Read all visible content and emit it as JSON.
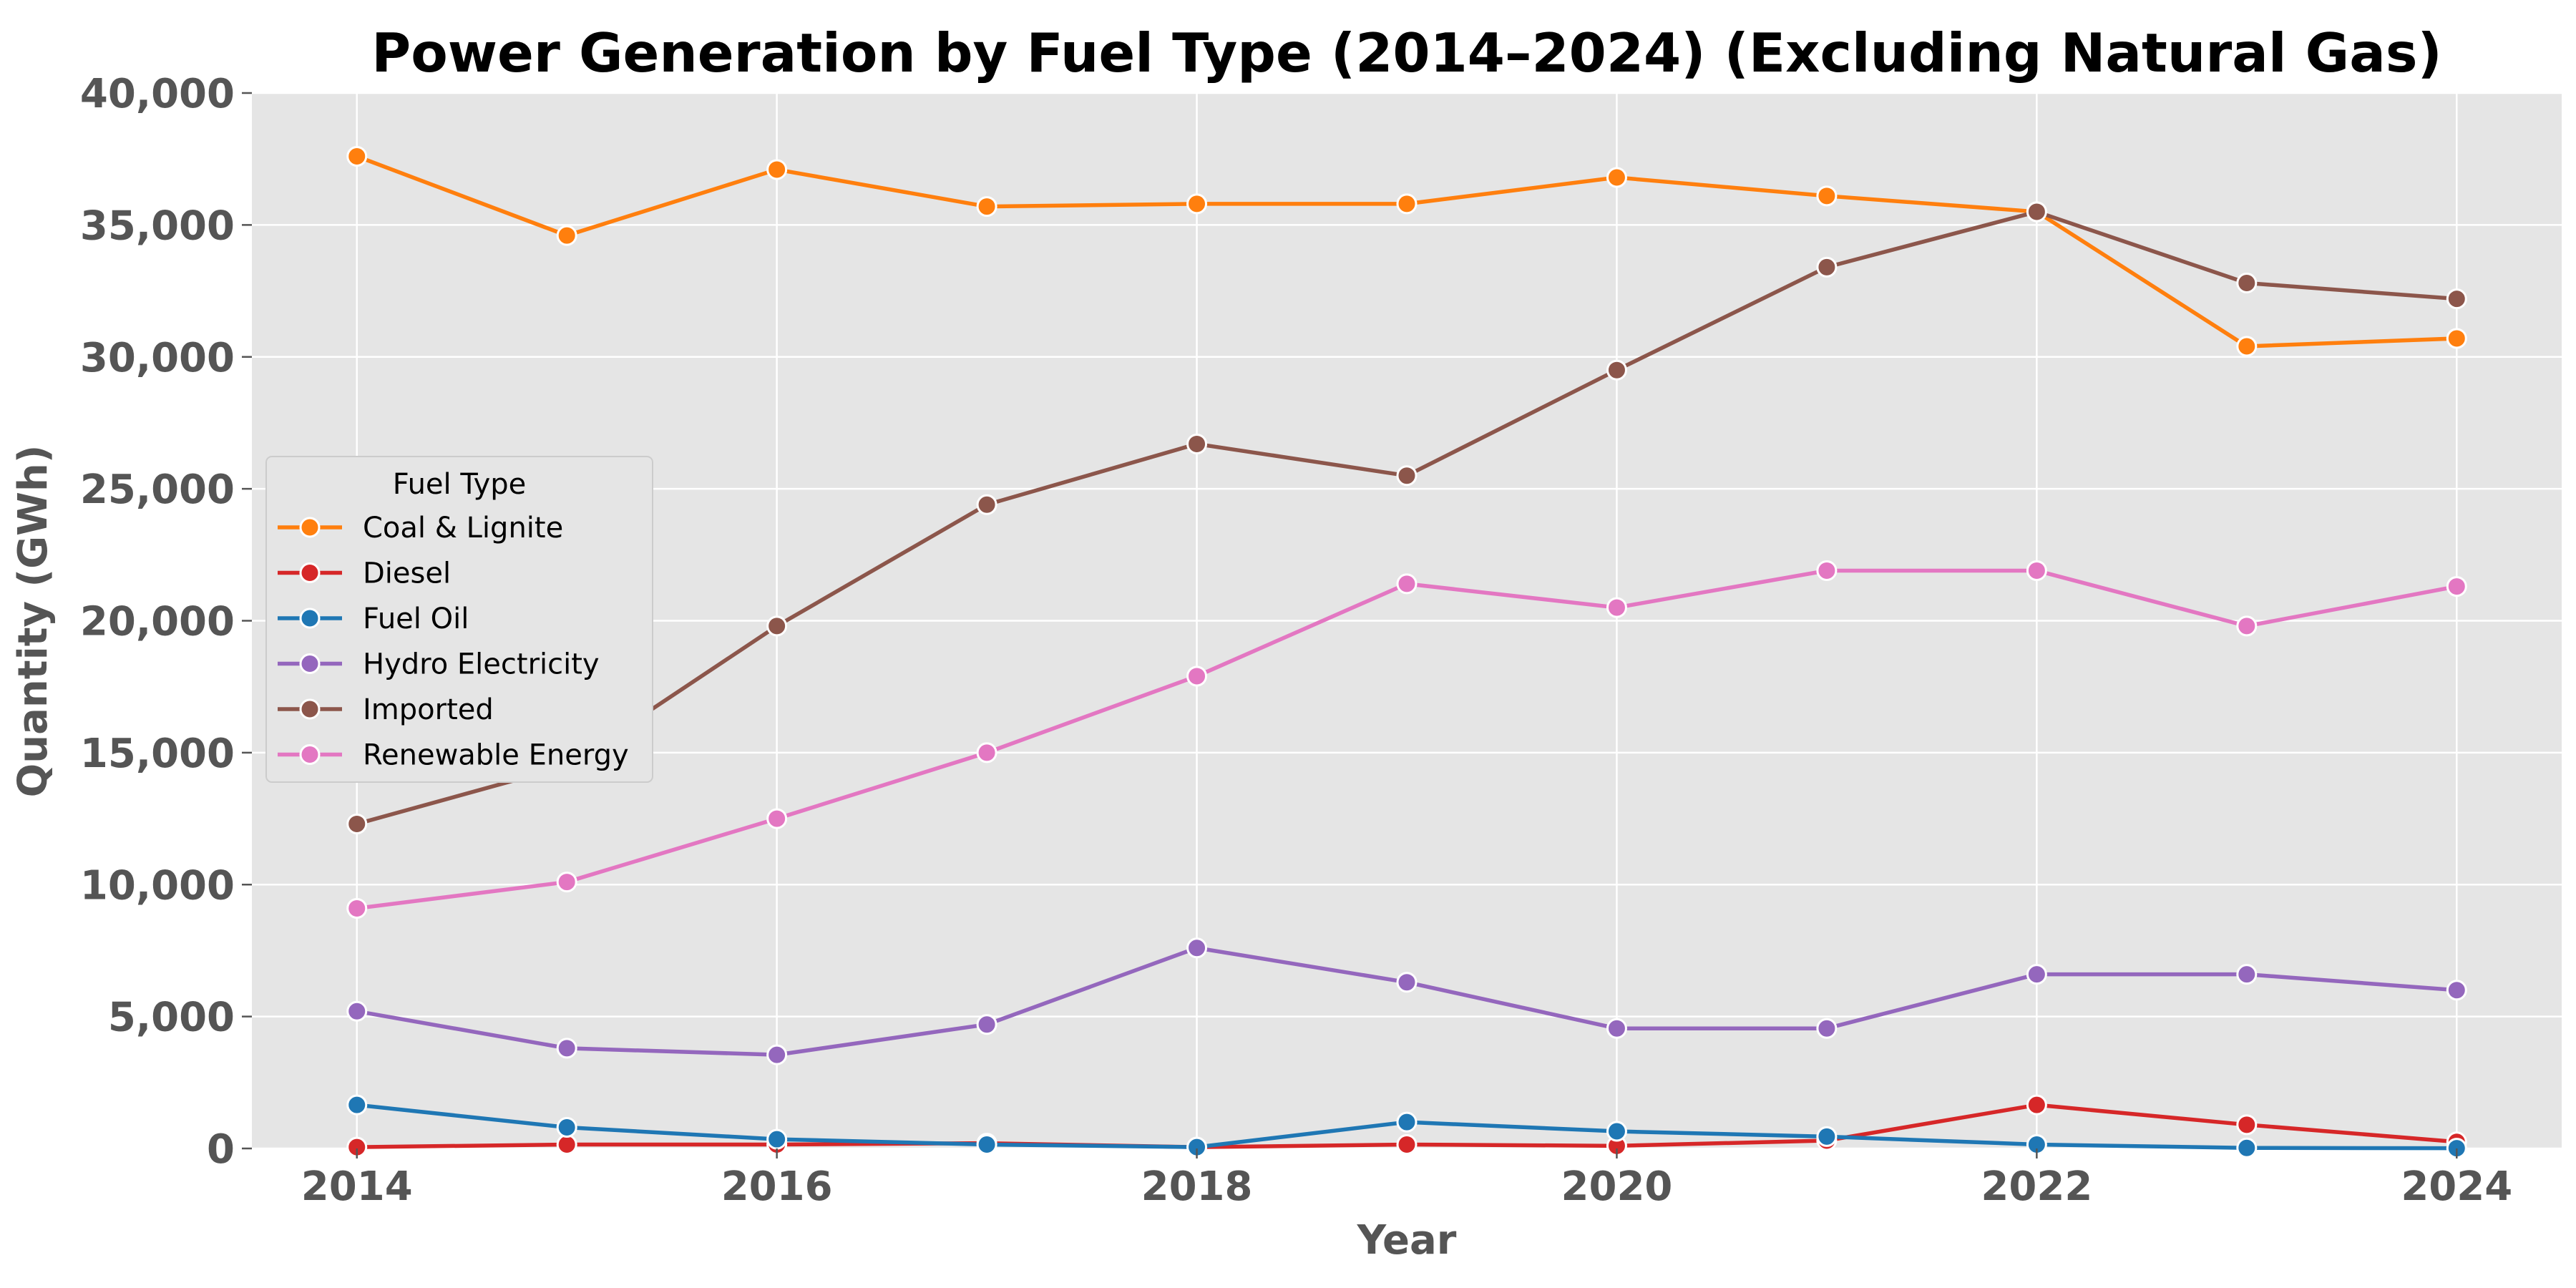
{
  "chart_data": {
    "type": "line",
    "title": "Power Generation by Fuel Type (2014–2024) (Excluding Natural Gas)",
    "xlabel": "Year",
    "ylabel": "Quantity (GWh)",
    "x": [
      2014,
      2015,
      2016,
      2017,
      2018,
      2019,
      2020,
      2021,
      2022,
      2023,
      2024
    ],
    "x_ticks": [
      "2014",
      "2016",
      "2018",
      "2020",
      "2022",
      "2024"
    ],
    "xlim": [
      2013.5,
      2024.5
    ],
    "ylim": [
      0,
      40000
    ],
    "y_ticks": [
      "0",
      "5,000",
      "10,000",
      "15,000",
      "20,000",
      "25,000",
      "30,000",
      "35,000",
      "40,000"
    ],
    "grid": true,
    "legend": {
      "title": "Fuel Type",
      "placement": "center-left"
    },
    "series": [
      {
        "name": "Coal & Lignite",
        "color": "#ff7f0e",
        "values": [
          37600,
          34600,
          37100,
          35700,
          35800,
          35800,
          36800,
          36100,
          35500,
          30400,
          30700
        ]
      },
      {
        "name": "Diesel",
        "color": "#d62728",
        "values": [
          50,
          150,
          150,
          200,
          50,
          150,
          100,
          300,
          1650,
          900,
          250
        ]
      },
      {
        "name": "Fuel Oil",
        "color": "#1f77b4",
        "values": [
          1650,
          800,
          350,
          150,
          50,
          1000,
          650,
          450,
          150,
          20,
          10
        ]
      },
      {
        "name": "Hydro Electricity",
        "color": "#9467bd",
        "values": [
          5200,
          3800,
          3550,
          4700,
          7600,
          6300,
          4550,
          4550,
          6600,
          6600,
          6000
        ]
      },
      {
        "name": "Imported",
        "color": "#8c564b",
        "values": [
          12300,
          14500,
          19800,
          24400,
          26700,
          25500,
          29500,
          33400,
          35500,
          32800,
          32200
        ]
      },
      {
        "name": "Renewable Energy",
        "color": "#e377c2",
        "values": [
          9100,
          10100,
          12500,
          15000,
          17900,
          21400,
          20500,
          21900,
          21900,
          19800,
          21300
        ]
      }
    ]
  }
}
